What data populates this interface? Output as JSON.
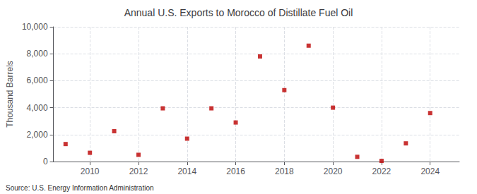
{
  "chart_data": {
    "type": "scatter",
    "title": "Annual U.S. Exports to Morocco of Distillate Fuel Oil",
    "y_label": "Thousand Barrels",
    "source": "Source: U.S. Energy Information Administration",
    "x": [
      2009,
      2010,
      2011,
      2012,
      2013,
      2014,
      2015,
      2016,
      2017,
      2018,
      2019,
      2020,
      2021,
      2022,
      2023,
      2024
    ],
    "values": [
      1300,
      650,
      2250,
      500,
      3950,
      1700,
      3950,
      2900,
      7800,
      5300,
      8600,
      4000,
      350,
      50,
      1350,
      3600
    ],
    "color": "#bb0000",
    "marker": "square",
    "xlim": [
      2008.5,
      2025.2
    ],
    "xticks": [
      2010,
      2012,
      2014,
      2016,
      2018,
      2020,
      2022,
      2024
    ],
    "ylim": [
      0,
      10000
    ],
    "yticks": [
      0,
      {
        "value": 2000,
        "label": "2,000"
      },
      {
        "value": 4000,
        "label": "4,000"
      },
      {
        "value": 6000,
        "label": "6,000"
      },
      {
        "value": 8000,
        "label": "8,000"
      },
      {
        "value": 10000,
        "label": "10,000"
      }
    ],
    "grid": true
  }
}
